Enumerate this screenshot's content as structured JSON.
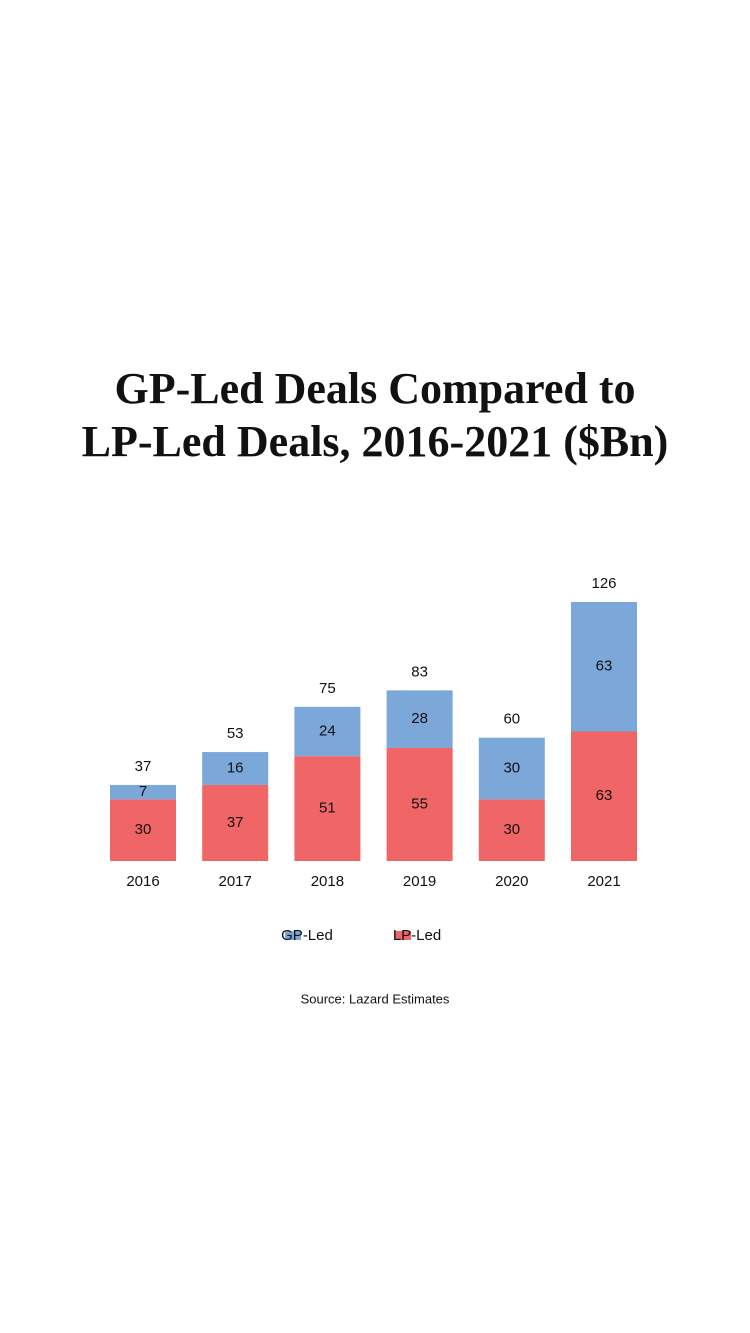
{
  "chart_data": {
    "type": "stacked-bar",
    "title": "GP-Led Deals Compared to LP-Led Deals, 2016-2021 ($Bn)",
    "categories": [
      "2016",
      "2017",
      "2018",
      "2019",
      "2020",
      "2021"
    ],
    "series": [
      {
        "name": "GP-Led",
        "color": "#7ba7d9",
        "values": [
          7,
          16,
          24,
          28,
          30,
          63
        ]
      },
      {
        "name": "LP-Led",
        "color": "#f06565",
        "values": [
          30,
          37,
          51,
          55,
          30,
          63
        ]
      }
    ],
    "totals": [
      37,
      53,
      75,
      83,
      60,
      126
    ],
    "source": "Source: Lazard Estimates"
  }
}
